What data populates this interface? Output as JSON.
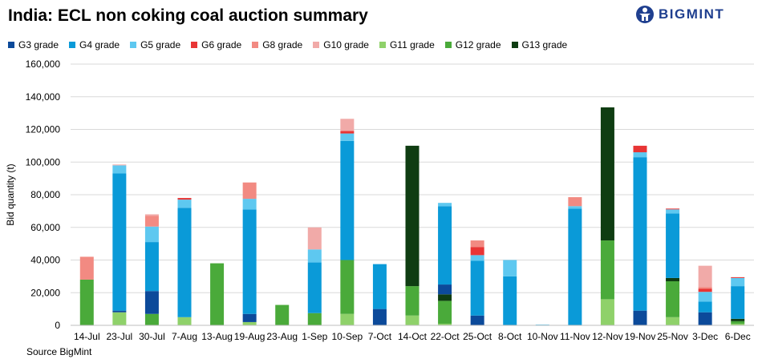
{
  "title": "India: ECL non coking coal auction summary",
  "brand": {
    "name": "BIGMINT",
    "icon": "person-logo-icon",
    "color": "#1f3f8f"
  },
  "source": "Source BigMint",
  "chart_data": {
    "type": "bar",
    "stacked": true,
    "ylabel": "Bid quantity (t)",
    "ylim": [
      0,
      160000
    ],
    "yticks": [
      0,
      20000,
      40000,
      60000,
      80000,
      100000,
      120000,
      140000,
      160000
    ],
    "ytick_labels": [
      "0",
      "20,000",
      "40,000",
      "60,000",
      "80,000",
      "100,000",
      "120,000",
      "140,000",
      "160,000"
    ],
    "grid": true,
    "legend_position": "top-left",
    "categories": [
      "14-Jul",
      "23-Jul",
      "30-Jul",
      "7-Aug",
      "13-Aug",
      "19-Aug",
      "23-Aug",
      "1-Sep",
      "10-Sep",
      "7-Oct",
      "14-Oct",
      "22-Oct",
      "25-Oct",
      "8-Oct",
      "10-Nov",
      "11-Nov",
      "12-Nov",
      "19-Nov",
      "25-Nov",
      "3-Dec",
      "6-Dec"
    ],
    "series": [
      {
        "name": "G11 grade",
        "color": "#8fd16a",
        "values": [
          0,
          8000,
          0,
          5000,
          0,
          2000,
          0,
          0,
          7000,
          0,
          6000,
          1000,
          0,
          0,
          0,
          0,
          16000,
          0,
          5000,
          0,
          1000
        ]
      },
      {
        "name": "G12 grade",
        "color": "#4aaa3a",
        "values": [
          28000,
          0,
          7000,
          0,
          38000,
          0,
          12500,
          7500,
          33000,
          0,
          18000,
          14000,
          0,
          0,
          0,
          0,
          36000,
          0,
          22000,
          0,
          1500
        ]
      },
      {
        "name": "G13 grade",
        "color": "#0f3d12",
        "values": [
          0,
          0,
          0,
          0,
          0,
          0,
          0,
          0,
          0,
          0,
          86000,
          4000,
          0,
          0,
          0,
          0,
          81500,
          0,
          2000,
          0,
          1500
        ]
      },
      {
        "name": "G3 grade",
        "color": "#0c4a9a",
        "values": [
          0,
          1000,
          14000,
          0,
          0,
          5000,
          0,
          0,
          0,
          10000,
          0,
          6000,
          6000,
          0,
          0,
          0,
          0,
          9000,
          0,
          8000,
          0
        ]
      },
      {
        "name": "G4 grade",
        "color": "#0a9ad8",
        "values": [
          0,
          84000,
          30000,
          67000,
          0,
          64000,
          0,
          31000,
          73000,
          27500,
          0,
          48000,
          33500,
          30000,
          0,
          71500,
          0,
          94000,
          39500,
          6500,
          20000
        ]
      },
      {
        "name": "G5 grade",
        "color": "#5ec8f0",
        "values": [
          0,
          5000,
          9500,
          5000,
          0,
          6500,
          0,
          8000,
          4500,
          0,
          0,
          2000,
          3500,
          10000,
          500,
          1500,
          0,
          3000,
          2500,
          6000,
          5000
        ]
      },
      {
        "name": "G6 grade",
        "color": "#e83535",
        "values": [
          0,
          0,
          0,
          1000,
          0,
          0,
          0,
          0,
          1500,
          0,
          0,
          0,
          5000,
          0,
          0,
          0,
          0,
          4000,
          500,
          2000,
          500
        ]
      },
      {
        "name": "G8 grade",
        "color": "#f28a82",
        "values": [
          14000,
          0,
          6500,
          0,
          0,
          10000,
          0,
          0,
          0,
          0,
          0,
          0,
          4000,
          0,
          0,
          5500,
          0,
          0,
          0,
          1000,
          0
        ]
      },
      {
        "name": "G10 grade",
        "color": "#f1aaa8",
        "values": [
          0,
          500,
          1000,
          0,
          0,
          0,
          0,
          13500,
          7500,
          0,
          0,
          0,
          0,
          0,
          0,
          0,
          0,
          0,
          0,
          13000,
          0
        ]
      }
    ],
    "legend": [
      {
        "name": "G3 grade",
        "color": "#0c4a9a"
      },
      {
        "name": "G4 grade",
        "color": "#0a9ad8"
      },
      {
        "name": "G5 grade",
        "color": "#5ec8f0"
      },
      {
        "name": "G6 grade",
        "color": "#e83535"
      },
      {
        "name": "G8 grade",
        "color": "#f28a82"
      },
      {
        "name": "G10 grade",
        "color": "#f1aaa8"
      },
      {
        "name": "G11 grade",
        "color": "#8fd16a"
      },
      {
        "name": "G12 grade",
        "color": "#4aaa3a"
      },
      {
        "name": "G13 grade",
        "color": "#0f3d12"
      }
    ]
  }
}
